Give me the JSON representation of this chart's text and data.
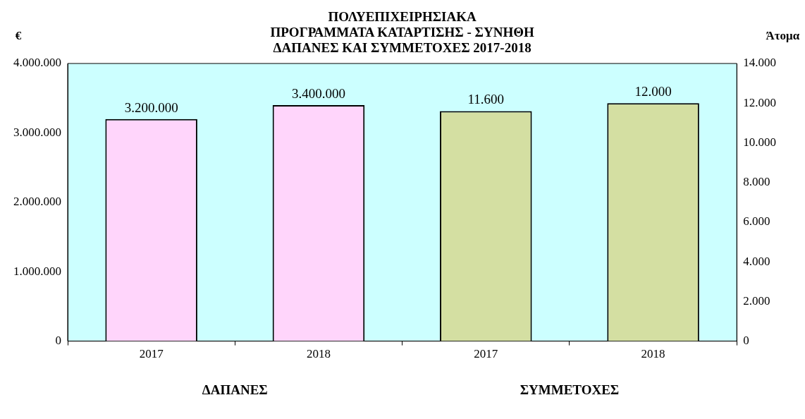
{
  "chart_data": {
    "type": "bar",
    "title": "ΠΟΛΥΕΠΙΧΕΙΡΗΣΙΑΚΑ\nΠΡΟΓΡΑΜΜΑΤΑ ΚΑΤΑΡΤΙΣΗΣ - ΣΥΝΗΘΗ\nΔΑΠΑΝΕΣ ΚΑΙ ΣΥΜΜΕΤΟΧΕΣ 2017-2018",
    "ylabel": "€",
    "y2label": "Άτομα",
    "categories": [
      "2017",
      "2018",
      "2017",
      "2018"
    ],
    "series": [
      {
        "color": "#ffd5fb",
        "values": [
          3200000,
          3400000,
          null,
          null
        ],
        "value_labels": [
          "3.200.000",
          "3.400.000",
          null,
          null
        ]
      },
      {
        "color": "#d4dfa2",
        "axis": "y2",
        "values": [
          null,
          null,
          11600,
          12000
        ],
        "value_labels": [
          null,
          null,
          "11.600",
          "12.000"
        ]
      }
    ],
    "ylim": [
      0,
      4000000
    ],
    "yticks": [
      0,
      {
        "value": 1000000,
        "label": "1.000.000"
      },
      {
        "value": 2000000,
        "label": "2.000.000"
      },
      {
        "value": 3000000,
        "label": "3.000.000"
      },
      {
        "value": 4000000,
        "label": "4.000.000"
      }
    ],
    "y2lim": [
      0,
      14000
    ],
    "y2ticks": [
      0,
      {
        "value": 2000,
        "label": "2.000"
      },
      {
        "value": 4000,
        "label": "4.000"
      },
      {
        "value": 6000,
        "label": "6.000"
      },
      {
        "value": 8000,
        "label": "8.000"
      },
      {
        "value": 10000,
        "label": "10.000"
      },
      {
        "value": 12000,
        "label": "12.000"
      },
      {
        "value": 14000,
        "label": "14.000"
      }
    ],
    "annotations": [
      "ΔΑΠΑΝΕΣ",
      "ΣΥΜΜΕΤΟΧΕΣ"
    ],
    "grid": false,
    "legend": false
  }
}
